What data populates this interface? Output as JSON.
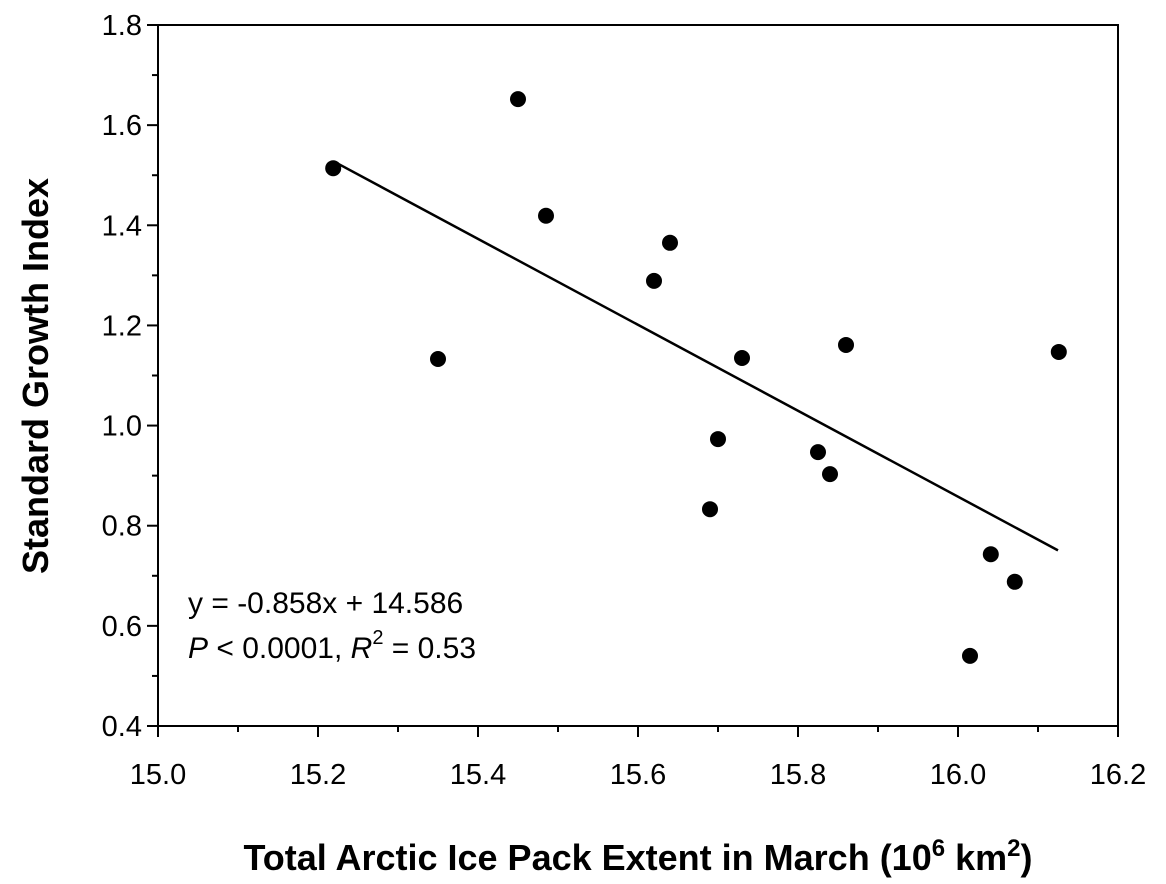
{
  "chart_data": {
    "type": "scatter",
    "x_label_parts": [
      "Total Arctic Ice Pack Extent in March (10",
      "6",
      " km",
      "2",
      ")"
    ],
    "y_label": "Standard Growth Index",
    "x": [
      15.219,
      15.35,
      15.45,
      15.485,
      15.62,
      15.64,
      15.73,
      15.7,
      15.69,
      15.825,
      15.84,
      15.86,
      16.126,
      16.041,
      16.071,
      16.015
    ],
    "values": [
      1.514,
      1.133,
      1.652,
      1.419,
      1.289,
      1.365,
      1.135,
      0.973,
      0.833,
      0.947,
      0.903,
      1.161,
      1.147,
      0.743,
      0.688,
      0.54
    ],
    "color": "#000000",
    "trendline": {
      "slope": -0.858,
      "intercept": 14.586,
      "x": [
        15.22,
        16.125
      ]
    },
    "annotation": {
      "line1": "y = -0.858x + 14.586",
      "line2_parts": [
        "P",
        " < 0.0001, ",
        "R",
        "2",
        " = 0.53"
      ]
    },
    "xlim": [
      15.0,
      16.2
    ],
    "xticks": [
      {
        "value": 15,
        "label": "15.0"
      },
      {
        "value": 15.2,
        "label": "15.2"
      },
      {
        "value": 15.4,
        "label": "15.4"
      },
      {
        "value": 15.6,
        "label": "15.6"
      },
      {
        "value": 15.8,
        "label": "15.8"
      },
      {
        "value": 16,
        "label": "16.0"
      },
      {
        "value": 16.2,
        "label": "16.2"
      }
    ],
    "ylim": [
      0.4,
      1.8
    ],
    "yticks": [
      0.4,
      0.6,
      0.8,
      {
        "value": 1,
        "label": "1.0"
      },
      1.2,
      1.4,
      1.6,
      1.8
    ]
  }
}
